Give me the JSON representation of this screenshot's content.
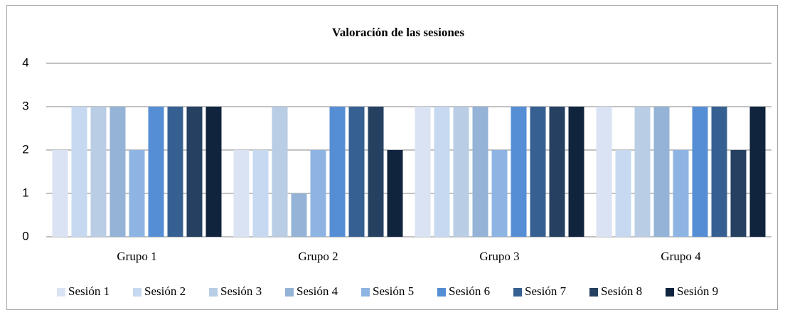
{
  "chart_data": {
    "type": "bar",
    "title": "Valoración de las sesiones",
    "categories": [
      "Grupo 1",
      "Grupo 2",
      "Grupo 3",
      "Grupo 4"
    ],
    "series": [
      {
        "name": "Sesión 1",
        "color": "#dae3f3",
        "values": [
          2,
          2,
          3,
          3
        ]
      },
      {
        "name": "Sesión 2",
        "color": "#c6d9f1",
        "values": [
          3,
          2,
          3,
          2
        ]
      },
      {
        "name": "Sesión 3",
        "color": "#b9cde5",
        "values": [
          3,
          3,
          3,
          3
        ]
      },
      {
        "name": "Sesión 4",
        "color": "#95b3d7",
        "values": [
          3,
          1,
          3,
          3
        ]
      },
      {
        "name": "Sesión 5",
        "color": "#8eb4e3",
        "values": [
          2,
          2,
          2,
          2
        ]
      },
      {
        "name": "Sesión 6",
        "color": "#558ed5",
        "values": [
          3,
          3,
          3,
          3
        ]
      },
      {
        "name": "Sesión 7",
        "color": "#376092",
        "values": [
          3,
          3,
          3,
          3
        ]
      },
      {
        "name": "Sesión 8",
        "color": "#254061",
        "values": [
          3,
          3,
          3,
          2
        ]
      },
      {
        "name": "Sesión 9",
        "color": "#10243e",
        "values": [
          3,
          2,
          3,
          3
        ]
      }
    ],
    "ylim": [
      0,
      4
    ],
    "yticks": [
      0,
      1,
      2,
      3,
      4
    ],
    "grid": true,
    "legend": "bottom"
  }
}
